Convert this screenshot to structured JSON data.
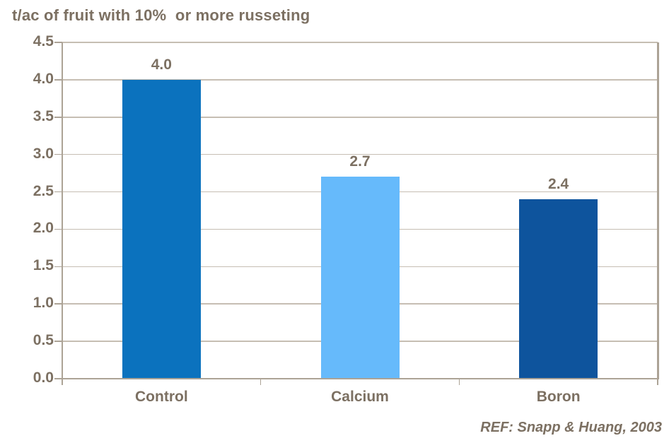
{
  "chart_data": {
    "type": "bar",
    "title": "t/ac of fruit with 10%  or more russeting",
    "categories": [
      "Control",
      "Calcium",
      "Boron"
    ],
    "values": [
      4.0,
      2.7,
      2.4
    ],
    "value_labels": [
      "4.0",
      "2.7",
      "2.4"
    ],
    "bar_colors": [
      "#0B72BE",
      "#66BAFB",
      "#0E549D"
    ],
    "xlabel": "",
    "ylabel": "",
    "ylim": [
      0,
      4.5
    ],
    "ytick_step": 0.5,
    "ytick_labels": [
      "0.0",
      "0.5",
      "1.0",
      "1.5",
      "2.0",
      "2.5",
      "3.0",
      "3.5",
      "4.0",
      "4.5"
    ],
    "grid": true,
    "legend_position": "none",
    "annotation": "REF: Snapp & Huang, 2003"
  },
  "footer": {
    "reference": "REF: Snapp & Huang, 2003"
  },
  "style": {
    "background": "#FFFFFF",
    "text_color": "#7C7062",
    "grid_color": "#C6BEB3",
    "axis_color": "#ACA396"
  }
}
